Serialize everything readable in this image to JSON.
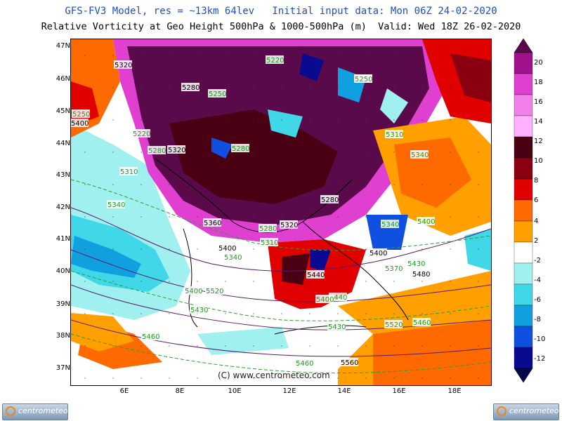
{
  "header": {
    "line1": "GFS-FV3 Model, res = ~13km 64lev   Initial input data: Mon 06Z 24-02-2020",
    "line2": "Relative Vorticity at Geo Height 500hPa & 1000-500hPa (m)  Valid: Wed 18Z 26-02-2020"
  },
  "axes": {
    "lat_labels": [
      "47N",
      "46N",
      "45N",
      "44N",
      "43N",
      "42N",
      "41N",
      "40N",
      "39N",
      "38N",
      "37N"
    ],
    "lon_labels": [
      "6E",
      "8E",
      "10E",
      "12E",
      "14E",
      "16E",
      "18E"
    ]
  },
  "legend": {
    "levels": [
      "20",
      "18",
      "16",
      "14",
      "12",
      "10",
      "8",
      "6",
      "4",
      "2",
      "-2",
      "-4",
      "-6",
      "-8",
      "-10",
      "-12"
    ],
    "colors": [
      "#5a0a4a",
      "#a0128c",
      "#e040d0",
      "#f080e8",
      "#ffb0ff",
      "#4a0012",
      "#8a0010",
      "#e00000",
      "#ff6a00",
      "#ffa000",
      "#ffffff",
      "#a0f0f0",
      "#40d8e8",
      "#10a0e0",
      "#1050e0",
      "#0a0a90",
      "#06064a"
    ]
  },
  "contour_labels": [
    "5320",
    "5220",
    "5250",
    "5250",
    "5280",
    "5250",
    "5250",
    "5400",
    "5220",
    "5280",
    "5320",
    "5280",
    "5310",
    "5340",
    "5280",
    "5340",
    "5360",
    "5280",
    "5320",
    "5310",
    "5400",
    "5340",
    "5440",
    "5400",
    "5370",
    "5400",
    "5520",
    "5430",
    "5440",
    "5480",
    "5460",
    "5430",
    "5520",
    "5460",
    "5400",
    "5430",
    "5560",
    "5460",
    "5310",
    "5340",
    "5400",
    "5250"
  ],
  "copyright": "(C) www.centrometeo.com",
  "logo_text": "centrometeo"
}
